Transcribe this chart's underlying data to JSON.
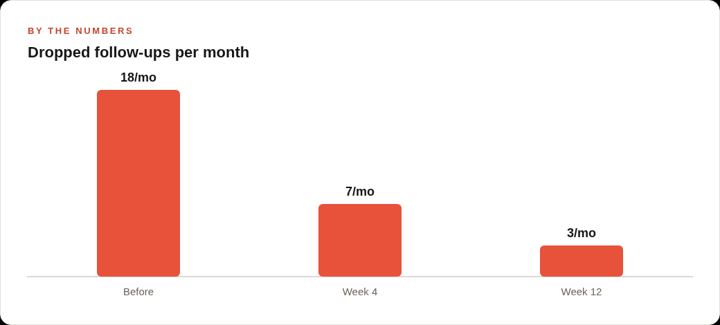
{
  "chart_data": {
    "type": "bar",
    "subtitle": "BY THE NUMBERS",
    "title": "Dropped follow-ups per month",
    "categories": [
      "Before",
      "Week 4",
      "Week 12"
    ],
    "values": [
      18,
      7,
      3
    ],
    "color": "#e8513a",
    "value_labels": [
      "18/mo",
      "7/mo",
      "3/mo"
    ]
  }
}
